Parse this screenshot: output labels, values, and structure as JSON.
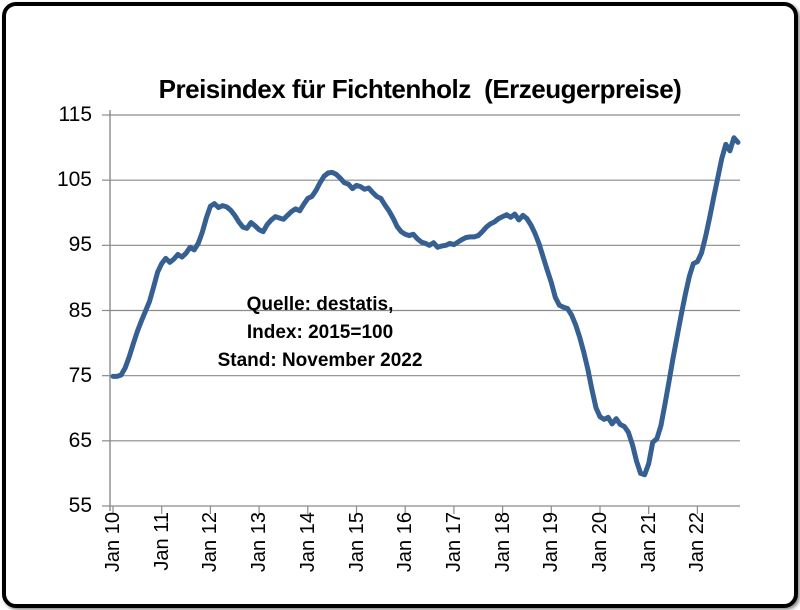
{
  "chart_data": {
    "type": "line",
    "title": "Preisindex für Fichtenholz  (Erzeugerpreise)",
    "annotation": [
      "Quelle: destatis,",
      "Index: 2015=100",
      "Stand: November 2022"
    ],
    "x_tick_labels": [
      "Jan 10",
      "Jan 11",
      "Jan 12",
      "Jan 13",
      "Jan 14",
      "Jan 15",
      "Jan 16",
      "Jan 17",
      "Jan 18",
      "Jan 19",
      "Jan 20",
      "Jan 21",
      "Jan 22"
    ],
    "months_per_tick": 12,
    "x_frequency": "monthly",
    "x_first": "Jan 2010",
    "x_last": "Nov 2022",
    "y_ticks": [
      115,
      105,
      95,
      85,
      75,
      65,
      55
    ],
    "ylim": [
      55,
      115
    ],
    "grid": "horizontal",
    "legend_position": "none",
    "line_color": "#366092",
    "grid_color": "#8A8A8A",
    "values": [
      74.9,
      74.9,
      75.1,
      76.2,
      77.9,
      79.9,
      81.8,
      83.4,
      84.9,
      86.4,
      88.6,
      90.9,
      92.2,
      93.0,
      92.4,
      92.9,
      93.6,
      93.2,
      93.8,
      94.7,
      94.3,
      95.3,
      97.0,
      99.2,
      101.0,
      101.4,
      100.8,
      101.1,
      100.9,
      100.4,
      99.6,
      98.6,
      97.8,
      97.6,
      98.5,
      98.0,
      97.4,
      97.1,
      98.2,
      98.9,
      99.4,
      99.2,
      99.0,
      99.6,
      100.2,
      100.6,
      100.3,
      101.3,
      102.2,
      102.5,
      103.4,
      104.6,
      105.6,
      106.1,
      106.2,
      105.9,
      105.3,
      104.6,
      104.4,
      103.7,
      104.2,
      104.0,
      103.6,
      103.8,
      103.1,
      102.5,
      102.2,
      101.2,
      100.3,
      99.2,
      97.9,
      97.1,
      96.7,
      96.5,
      96.7,
      96.0,
      95.5,
      95.3,
      95.0,
      95.4,
      94.7,
      94.9,
      95.0,
      95.3,
      95.1,
      95.5,
      95.9,
      96.2,
      96.3,
      96.3,
      96.5,
      97.1,
      97.8,
      98.3,
      98.6,
      99.1,
      99.4,
      99.7,
      99.3,
      99.8,
      98.9,
      99.6,
      99.1,
      98.1,
      96.8,
      95.2,
      93.2,
      91.2,
      89.3,
      87.0,
      85.8,
      85.5,
      85.3,
      84.3,
      82.8,
      80.9,
      78.6,
      76.0,
      72.9,
      70.1,
      68.7,
      68.3,
      68.6,
      67.6,
      68.4,
      67.5,
      67.2,
      66.3,
      64.4,
      61.9,
      60.0,
      59.8,
      61.5,
      64.8,
      65.3,
      67.3,
      70.6,
      74.1,
      77.7,
      81.0,
      84.3,
      87.4,
      90.2,
      92.2,
      92.5,
      93.8,
      96.3,
      99.2,
      102.3,
      105.3,
      108.3,
      110.5,
      109.5,
      111.5,
      110.8
    ]
  }
}
